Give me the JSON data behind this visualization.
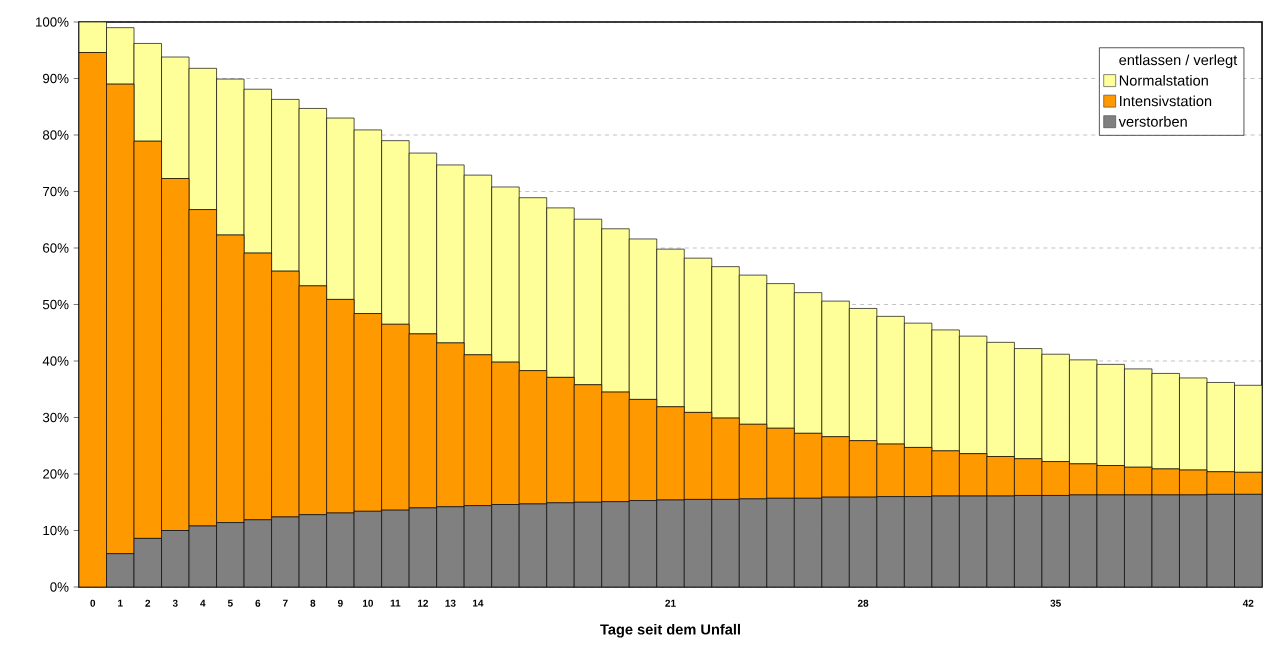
{
  "chart_data": {
    "type": "bar",
    "stacked": true,
    "xlabel": "Tage seit dem Unfall",
    "legend_title": "entlassen / verlegt",
    "categories": [
      "0",
      "1",
      "2",
      "3",
      "4",
      "5",
      "6",
      "7",
      "8",
      "9",
      "10",
      "11",
      "12",
      "13",
      "14",
      null,
      null,
      null,
      null,
      null,
      null,
      "21",
      null,
      null,
      null,
      null,
      null,
      null,
      "28",
      null,
      null,
      null,
      null,
      null,
      null,
      "35",
      null,
      null,
      null,
      null,
      null,
      null,
      "42"
    ],
    "series": [
      {
        "name": "verstorben",
        "color": "#808080",
        "values": [
          0,
          5.9,
          8.6,
          10.0,
          10.8,
          11.4,
          11.9,
          12.4,
          12.8,
          13.1,
          13.4,
          13.6,
          14.0,
          14.2,
          14.4,
          14.6,
          14.7,
          14.9,
          15.0,
          15.1,
          15.3,
          15.4,
          15.5,
          15.5,
          15.6,
          15.7,
          15.7,
          15.9,
          15.9,
          16.0,
          16.0,
          16.1,
          16.1,
          16.1,
          16.2,
          16.2,
          16.3,
          16.3,
          16.3,
          16.3,
          16.3,
          16.4,
          16.4
        ]
      },
      {
        "name": "Intensivstation",
        "color": "#ff9900",
        "values": [
          94.6,
          83.1,
          70.3,
          62.3,
          56.0,
          50.9,
          47.2,
          43.5,
          40.5,
          37.8,
          35.0,
          32.9,
          30.8,
          29.0,
          26.7,
          25.2,
          23.6,
          22.2,
          20.8,
          19.4,
          17.9,
          16.5,
          15.4,
          14.4,
          13.2,
          12.4,
          11.5,
          10.7,
          10.0,
          9.3,
          8.7,
          8.0,
          7.5,
          7.0,
          6.5,
          6.0,
          5.5,
          5.2,
          4.9,
          4.6,
          4.4,
          4.0,
          3.9
        ]
      },
      {
        "name": "Normalstation",
        "color": "#ffff99",
        "values": [
          5.4,
          10.0,
          17.3,
          21.5,
          25.0,
          27.6,
          29.0,
          30.4,
          31.4,
          32.1,
          32.5,
          32.5,
          32.0,
          31.5,
          31.8,
          31.0,
          30.6,
          30.0,
          29.3,
          28.9,
          28.4,
          27.9,
          27.3,
          26.8,
          26.4,
          25.6,
          24.9,
          24.0,
          23.4,
          22.6,
          22.0,
          21.4,
          20.8,
          20.2,
          19.5,
          19.0,
          18.4,
          17.9,
          17.4,
          16.9,
          16.3,
          15.8,
          15.4
        ]
      }
    ],
    "ylim": [
      0,
      100
    ],
    "yticks": [
      {
        "value": 0,
        "label": "0%"
      },
      {
        "value": 10,
        "label": "10%"
      },
      {
        "value": 20,
        "label": "20%"
      },
      {
        "value": 30,
        "label": "30%"
      },
      {
        "value": 40,
        "label": "40%"
      },
      {
        "value": 50,
        "label": "50%"
      },
      {
        "value": 60,
        "label": "60%"
      },
      {
        "value": 70,
        "label": "70%"
      },
      {
        "value": 80,
        "label": "80%"
      },
      {
        "value": 90,
        "label": "90%"
      },
      {
        "value": 100,
        "label": "100%"
      }
    ],
    "grid": "y",
    "legend": "top right"
  }
}
